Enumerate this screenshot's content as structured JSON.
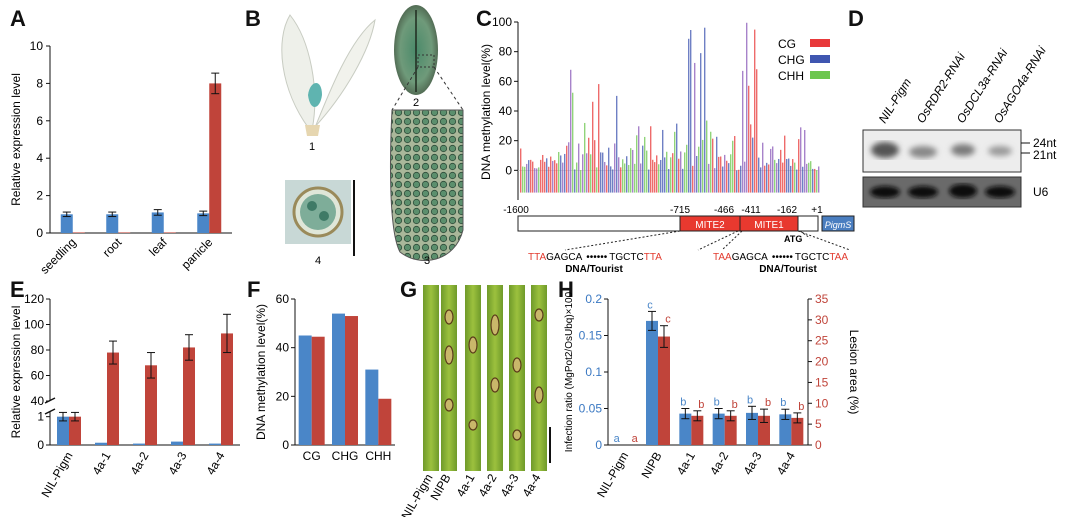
{
  "figure": {
    "panel_letters": {
      "A": "A",
      "B": "B",
      "C": "C",
      "D": "D",
      "E": "E",
      "F": "F",
      "G": "G",
      "H": "H"
    },
    "colors": {
      "blue": "#4a86c8",
      "red": "#c0443a",
      "green": "#7ac24a",
      "purple": "#6a4aa8"
    }
  },
  "panel_b": {
    "labels": [
      "1",
      "2",
      "3",
      "4"
    ]
  },
  "panel_c": {
    "scale_labels": [
      "-1600",
      "-715",
      "-466",
      "-411",
      "-162",
      "+1"
    ],
    "elements": {
      "mite2": "MITE2",
      "mite1": "MITE1",
      "pigms": "PigmS",
      "atg": "ATG"
    },
    "seq_left": {
      "a": "TTA",
      "b": "GAGCA",
      "c": "TGCTC",
      "d": "TTA",
      "family": "DNA/Tourist"
    },
    "seq_right": {
      "a": "TAA",
      "b": "GAGCA",
      "c": "TGCTC",
      "d": "TAA",
      "family": "DNA/Tourist"
    }
  },
  "panel_d": {
    "lanes": [
      "NIL-Pigm",
      "OsRDR2-RNAi",
      "OsDCL3a-RNAi",
      "OsAGO4a-RNAi"
    ],
    "size_labels": [
      "24nt",
      "21nt"
    ],
    "loading_label": "U6"
  },
  "panel_g": {
    "labels": [
      "NIL-Pigm",
      "NIPB",
      "4a-1",
      "4a-2",
      "4a-3",
      "4a-4"
    ]
  },
  "chart_data": [
    {
      "id": "A",
      "type": "bar",
      "ylabel": "Relative expression level",
      "categories": [
        "seedling",
        "root",
        "leaf",
        "panicle"
      ],
      "yticks": [
        "0",
        "2",
        "4",
        "6",
        "8",
        "10"
      ],
      "ylim": [
        0,
        10
      ],
      "series": [
        {
          "name": "blue",
          "color": "#4a86c8",
          "values": [
            1.0,
            1.0,
            1.1,
            1.05
          ],
          "errors": [
            0.12,
            0.12,
            0.15,
            0.12
          ]
        },
        {
          "name": "red",
          "color": "#c0443a",
          "values": [
            0.03,
            0.03,
            0.03,
            8.0
          ],
          "errors": [
            0,
            0,
            0,
            0.55
          ]
        }
      ]
    },
    {
      "id": "C",
      "type": "bar",
      "ylabel": "DNA methylation level(%)",
      "yticks": [
        "0",
        "20",
        "40",
        "60",
        "80",
        "100"
      ],
      "ylim": [
        -20,
        100
      ],
      "legend": [
        "CG",
        "CHG",
        "CHH"
      ],
      "legend_colors": [
        "#e8393a",
        "#3f56b0",
        "#6cc64e"
      ],
      "note": "per-cytosine methylation profile across the -1600 to +1 promoter region"
    },
    {
      "id": "E",
      "type": "bar",
      "ylabel": "Relative expression level",
      "categories": [
        "NIL-Pigm",
        "4a-1",
        "4a-2",
        "4a-3",
        "4a-4"
      ],
      "yticks_low": [
        "0",
        "1"
      ],
      "yticks_high": [
        "40",
        "60",
        "80",
        "100",
        "120"
      ],
      "break_between": [
        1,
        40
      ],
      "series": [
        {
          "name": "blue",
          "color": "#4a86c8",
          "values": [
            1.0,
            0.08,
            0.05,
            0.12,
            0.05
          ],
          "errors": [
            0.15,
            0,
            0,
            0,
            0
          ]
        },
        {
          "name": "red",
          "color": "#c0443a",
          "values": [
            1.0,
            78,
            68,
            82,
            93
          ],
          "errors": [
            0.15,
            9,
            10,
            10,
            15
          ]
        }
      ]
    },
    {
      "id": "F",
      "type": "bar",
      "ylabel": "DNA methylation level(%)",
      "categories": [
        "CG",
        "CHG",
        "CHH"
      ],
      "yticks": [
        "0",
        "20",
        "40",
        "60"
      ],
      "ylim": [
        0,
        60
      ],
      "series": [
        {
          "name": "blue",
          "color": "#4a86c8",
          "values": [
            45,
            54,
            31
          ]
        },
        {
          "name": "red",
          "color": "#c0443a",
          "values": [
            44.5,
            53,
            19
          ]
        }
      ]
    },
    {
      "id": "H",
      "type": "bar",
      "ylabel_left": "Infection ratio (MgPot2/OsUbq)×100",
      "ylabel_right": "Lesion area (%)",
      "categories": [
        "NIL-Pigm",
        "NIPB",
        "4a-1",
        "4a-2",
        "4a-3",
        "4a-4"
      ],
      "yticks_left": [
        "0",
        "0.05",
        "0.1",
        "0.15",
        "0.2"
      ],
      "yticks_right": [
        "0",
        "5",
        "10",
        "15",
        "20",
        "25",
        "30",
        "35"
      ],
      "ylim_left": [
        0,
        0.2
      ],
      "ylim_right": [
        0,
        35
      ],
      "series": [
        {
          "name": "Infection ratio",
          "axis": "left",
          "color": "#4a86c8",
          "values": [
            0,
            0.17,
            0.043,
            0.043,
            0.044,
            0.042
          ],
          "errors": [
            0,
            0.013,
            0.007,
            0.007,
            0.009,
            0.007
          ],
          "letters": [
            "a",
            "c",
            "b",
            "b",
            "b",
            "b"
          ]
        },
        {
          "name": "Lesion area",
          "axis": "right",
          "color": "#c0443a",
          "values": [
            0,
            26,
            7,
            7,
            7,
            6.5
          ],
          "errors": [
            0,
            2.6,
            1.2,
            1.2,
            1.6,
            1.2
          ],
          "letters": [
            "a",
            "c",
            "b",
            "b",
            "b",
            "b"
          ]
        }
      ]
    }
  ]
}
